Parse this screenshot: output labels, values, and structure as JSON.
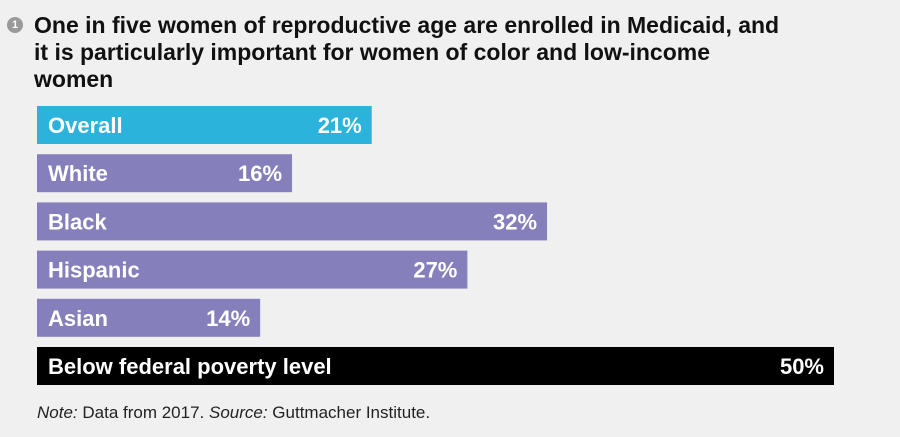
{
  "badge": "1",
  "title": "One in five women of reproductive age are enrolled in Medicaid, and it is particularly important for women of color and low-income women",
  "note": {
    "note_label": "Note:",
    "note_text": " Data from 2017. ",
    "source_label": "Source:",
    "source_text": " Guttmacher Institute."
  },
  "colors": {
    "overall": "#2cb3dc",
    "group": "#8580bb",
    "poverty": "#000000",
    "label": "#ffffff",
    "background": "#f0f0f0"
  },
  "chart_data": {
    "type": "bar",
    "orientation": "horizontal",
    "title": "One in five women of reproductive age are enrolled in Medicaid, and it is particularly important for women of color and low-income women",
    "categories": [
      "Overall",
      "White",
      "Black",
      "Hispanic",
      "Asian",
      "Below federal poverty level"
    ],
    "values": [
      21,
      16,
      32,
      27,
      14,
      50
    ],
    "value_labels": [
      "21%",
      "16%",
      "32%",
      "27%",
      "14%",
      "50%"
    ],
    "unit": "%",
    "xlim": [
      0,
      50
    ],
    "grid": false,
    "legend": "none"
  }
}
